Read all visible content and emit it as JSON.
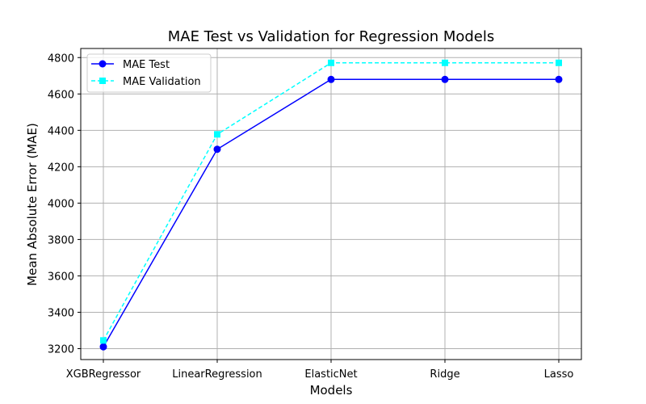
{
  "chart_data": {
    "type": "line",
    "title": "MAE Test vs Validation for Regression Models",
    "xlabel": "Models",
    "ylabel": "Mean Absolute Error (MAE)",
    "categories": [
      "XGBRegressor",
      "LinearRegression",
      "ElasticNet",
      "Ridge",
      "Lasso"
    ],
    "ylim": [
      3140,
      4850
    ],
    "yticks": [
      3200,
      3400,
      3600,
      3800,
      4000,
      4200,
      4400,
      4600,
      4800
    ],
    "grid": true,
    "legend_position": "top-left",
    "series": [
      {
        "name": "MAE Test",
        "values": [
          3210,
          4296,
          4680,
          4680,
          4680
        ],
        "color": "#0000ff",
        "line_style": "solid",
        "marker": "circle"
      },
      {
        "name": "MAE Validation",
        "values": [
          3245,
          4378,
          4771,
          4771,
          4771
        ],
        "color": "#00ffff",
        "line_style": "dashed",
        "marker": "square"
      }
    ]
  }
}
